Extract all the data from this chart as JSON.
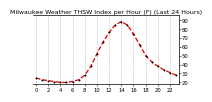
{
  "title": "Milwaukee Weather THSW Index per Hour (F) (Last 24 Hours)",
  "hours": [
    0,
    1,
    2,
    3,
    4,
    5,
    6,
    7,
    8,
    9,
    10,
    11,
    12,
    13,
    14,
    15,
    16,
    17,
    18,
    19,
    20,
    21,
    22,
    23
  ],
  "values": [
    25,
    23,
    22,
    21,
    20,
    20,
    21,
    23,
    28,
    38,
    52,
    65,
    76,
    84,
    88,
    84,
    74,
    62,
    50,
    43,
    38,
    34,
    31,
    28
  ],
  "line_color": "#dd0000",
  "marker_color": "#000000",
  "bg_color": "#ffffff",
  "grid_color": "#888888",
  "ylim_min": 18,
  "ylim_max": 95,
  "ytick_values": [
    20,
    30,
    40,
    50,
    60,
    70,
    80,
    90
  ],
  "ytick_labels": [
    "20",
    "30",
    "40",
    "50",
    "60",
    "70",
    "80",
    "90"
  ],
  "xtick_values": [
    0,
    2,
    4,
    6,
    8,
    10,
    12,
    14,
    16,
    18,
    20,
    22
  ],
  "xtick_labels": [
    "0",
    "2",
    "4",
    "6",
    "8",
    "10",
    "12",
    "14",
    "16",
    "18",
    "20",
    "22"
  ],
  "title_fontsize": 4.5,
  "tick_fontsize": 3.8,
  "linewidth": 0.9,
  "markersize": 2.0
}
